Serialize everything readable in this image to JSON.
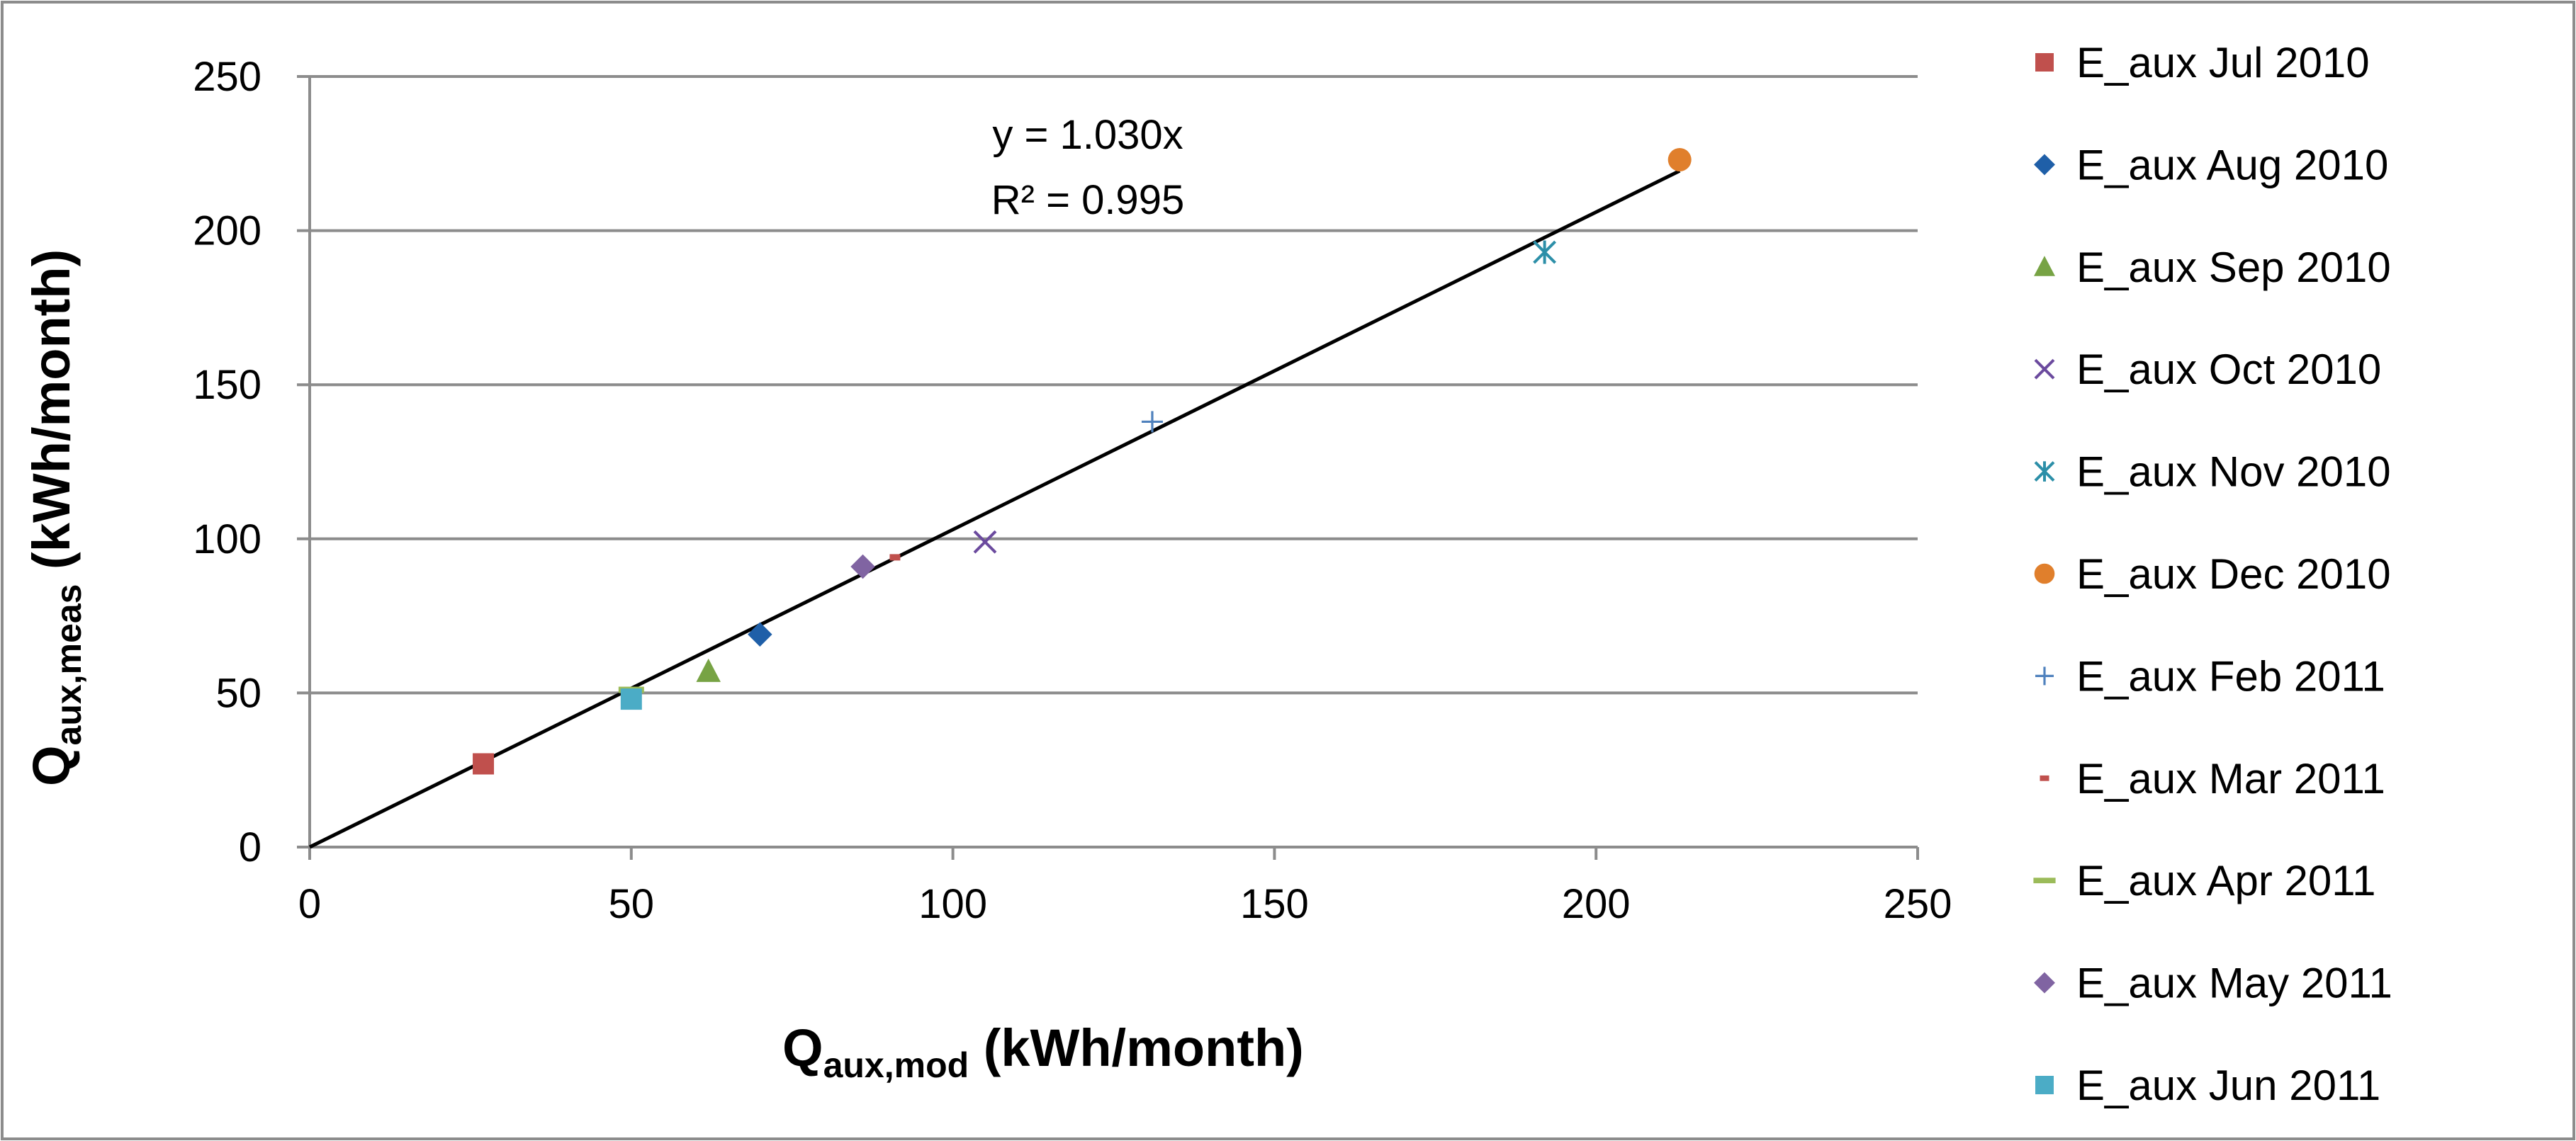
{
  "chart_data": {
    "type": "scatter",
    "title": "",
    "xlabel": {
      "main": "Q",
      "sub": "aux,mod",
      "unit": " (kWh/month)"
    },
    "ylabel": {
      "main": "Q",
      "sub": "aux,meas",
      "unit": " (kWh/month)"
    },
    "xlim": [
      0,
      250
    ],
    "ylim": [
      0,
      250
    ],
    "x_ticks": [
      0,
      50,
      100,
      150,
      200,
      250
    ],
    "y_ticks": [
      0,
      50,
      100,
      150,
      200,
      250
    ],
    "grid": "horizontal",
    "legend_position": "right",
    "trendline": {
      "slope": 1.03,
      "x_range": [
        0,
        213
      ],
      "equation_label": "y = 1.030x",
      "r2_label": "R² = 0.995"
    },
    "series": [
      {
        "name": "E_aux Jul 2010",
        "marker": "square",
        "color": "#c0504d",
        "x": 27,
        "y": 27
      },
      {
        "name": "E_aux Aug 2010",
        "marker": "diamond",
        "color": "#1f5fa8",
        "x": 70,
        "y": 69
      },
      {
        "name": "E_aux Sep 2010",
        "marker": "triangle",
        "color": "#77a344",
        "x": 62,
        "y": 57
      },
      {
        "name": "E_aux Oct 2010",
        "marker": "x",
        "color": "#6b4a9e",
        "x": 105,
        "y": 99
      },
      {
        "name": "E_aux Nov 2010",
        "marker": "star",
        "color": "#2c8fa8",
        "x": 192,
        "y": 193
      },
      {
        "name": "E_aux Dec 2010",
        "marker": "circle",
        "color": "#e07f2c",
        "x": 213,
        "y": 223
      },
      {
        "name": "E_aux Feb 2011",
        "marker": "plus",
        "color": "#4f81bd",
        "x": 131,
        "y": 138
      },
      {
        "name": "E_aux Mar 2011",
        "marker": "dash",
        "color": "#c0504d",
        "x": 91,
        "y": 94
      },
      {
        "name": "E_aux Apr 2011",
        "marker": "hline",
        "color": "#9bbb59",
        "x": 50,
        "y": 51
      },
      {
        "name": "E_aux May 2011",
        "marker": "diamond",
        "color": "#8064a2",
        "x": 86,
        "y": 91
      },
      {
        "name": "E_aux Jun 2011",
        "marker": "square",
        "color": "#4bacc6",
        "x": 50,
        "y": 48
      }
    ]
  },
  "colors": {
    "grid": "#8c8c8c",
    "axis": "#8c8c8c",
    "trendline": "#000000",
    "frame": "#8c8c8c"
  }
}
